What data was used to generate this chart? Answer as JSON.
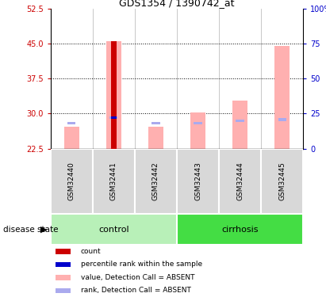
{
  "title": "GDS1354 / 1390742_at",
  "samples": [
    "GSM32440",
    "GSM32441",
    "GSM32442",
    "GSM32443",
    "GSM32444",
    "GSM32445"
  ],
  "groups": [
    "control",
    "control",
    "control",
    "cirrhosis",
    "cirrhosis",
    "cirrhosis"
  ],
  "ylim_left": [
    22.5,
    52.5
  ],
  "yticks_left": [
    22.5,
    30.0,
    37.5,
    45.0,
    52.5
  ],
  "ylim_right": [
    0,
    100
  ],
  "yticks_right": [
    0,
    25,
    50,
    75,
    100
  ],
  "value_bars": [
    27.2,
    45.5,
    27.2,
    30.2,
    32.8,
    44.5
  ],
  "rank_bars": [
    28.0,
    29.2,
    28.0,
    28.0,
    28.5,
    28.7
  ],
  "count_bar_idx": 1,
  "count_bar_value": 45.5,
  "count_bar_color": "#cc0000",
  "value_bar_color": "#ffb0b0",
  "rank_bar_color": "#aaaaee",
  "percentile_bar_color": "#0000cc",
  "percentile_rank_value": 29.2,
  "bar_width": 0.35,
  "group_colors": {
    "control": "#b8f0b8",
    "cirrhosis": "#44dd44"
  },
  "group_label_color": "black",
  "disease_state_label": "disease state",
  "legend_items": [
    {
      "color": "#cc0000",
      "label": "count"
    },
    {
      "color": "#0000cc",
      "label": "percentile rank within the sample"
    },
    {
      "color": "#ffb0b0",
      "label": "value, Detection Call = ABSENT"
    },
    {
      "color": "#aaaaee",
      "label": "rank, Detection Call = ABSENT"
    }
  ],
  "left_tick_color": "#cc0000",
  "right_tick_color": "#0000cc",
  "cell_bg": "#d8d8d8",
  "cell_border": "#ffffff"
}
